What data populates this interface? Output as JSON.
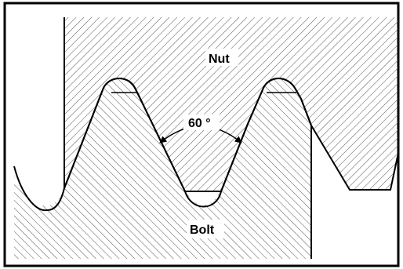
{
  "diagram": {
    "labels": {
      "nut": "Nut",
      "bolt": "Bolt",
      "angle": "60 °"
    },
    "parts": [
      {
        "name": "nut",
        "fill": "hatched-diagonal-down"
      },
      {
        "name": "bolt",
        "fill": "hatched-diagonal-up"
      }
    ],
    "colors": {
      "line": "#000000",
      "hatch": "#555555",
      "background": "#ffffff"
    }
  }
}
